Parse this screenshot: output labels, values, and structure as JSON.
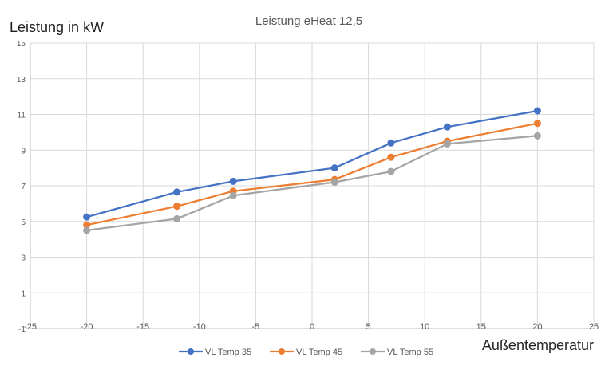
{
  "chart_data": {
    "type": "line",
    "title": "Leistung eHeat 12,5",
    "xlabel": "Außentemperatur",
    "ylabel": "Leistung in kW",
    "xlim": [
      -25,
      25
    ],
    "ylim": [
      -1,
      15
    ],
    "xticks": [
      -25,
      -20,
      -15,
      -10,
      -5,
      0,
      5,
      10,
      15,
      20,
      25
    ],
    "yticks": [
      -1,
      1,
      3,
      5,
      7,
      9,
      11,
      13,
      15
    ],
    "x_tick_labels": [
      "-25",
      "-20",
      "-15",
      "-10",
      "-5",
      "0",
      "5",
      "10",
      "15",
      "20",
      "25"
    ],
    "y_tick_labels": [
      "-1",
      "1",
      "3",
      "5",
      "7",
      "9",
      "11",
      "13",
      "15"
    ],
    "grid": true,
    "legend_position": "bottom",
    "series": [
      {
        "name": "VL Temp 35",
        "color": "#4472C4",
        "x": [
          -20,
          -12,
          -7,
          2,
          7,
          12,
          20
        ],
        "y": [
          5.25,
          6.65,
          7.25,
          8.0,
          9.4,
          10.3,
          11.2
        ]
      },
      {
        "name": "VL Temp 45",
        "color": "#ED7D31",
        "x": [
          -20,
          -12,
          -7,
          2,
          7,
          12,
          20
        ],
        "y": [
          4.8,
          5.85,
          6.7,
          7.35,
          8.6,
          9.5,
          10.5
        ]
      },
      {
        "name": "VL Temp 55",
        "color": "#A5A5A5",
        "x": [
          -20,
          -12,
          -7,
          2,
          7,
          12,
          20
        ],
        "y": [
          4.5,
          5.15,
          6.45,
          7.2,
          7.8,
          9.35,
          9.8
        ]
      }
    ]
  }
}
